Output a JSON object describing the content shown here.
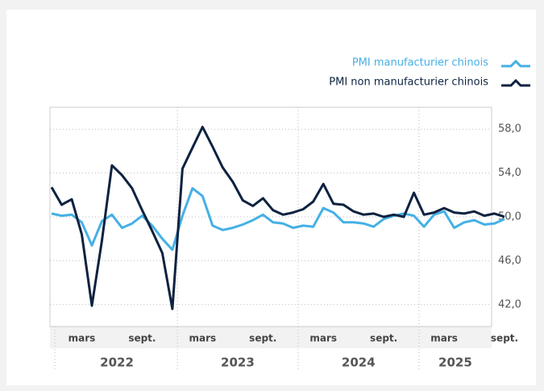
{
  "chart_data": {
    "type": "line",
    "categories": [
      null,
      null,
      null,
      "mars",
      null,
      null,
      null,
      null,
      null,
      "sept.",
      null,
      null,
      null,
      null,
      null,
      "mars",
      null,
      null,
      null,
      null,
      null,
      "sept.",
      null,
      null,
      null,
      null,
      null,
      "mars",
      null,
      null,
      null,
      null,
      null,
      "sept.",
      null,
      null,
      null,
      null,
      null,
      "mars",
      null,
      null,
      null,
      null,
      null,
      "sept."
    ],
    "year_labels": [
      "2022",
      "2023",
      "2024",
      "2025"
    ],
    "series": [
      {
        "name": "PMI manufacturier chinois",
        "color": "#45b0e5",
        "values": [
          50.3,
          50.1,
          50.2,
          49.5,
          47.4,
          49.6,
          50.2,
          49.0,
          49.4,
          50.1,
          49.2,
          48.0,
          47.0,
          50.1,
          52.6,
          51.9,
          49.2,
          48.8,
          49.0,
          49.3,
          49.7,
          50.2,
          49.5,
          49.4,
          49.0,
          49.2,
          49.1,
          50.8,
          50.4,
          49.5,
          49.5,
          49.4,
          49.1,
          49.8,
          50.1,
          50.3,
          50.1,
          49.1,
          50.2,
          50.5,
          49.0,
          49.5,
          49.7,
          49.3,
          49.4,
          49.8
        ]
      },
      {
        "name": "PMI non manufacturier chinois",
        "color": "#0d2240",
        "values": [
          52.7,
          51.1,
          51.6,
          48.4,
          41.9,
          47.8,
          54.7,
          53.8,
          52.6,
          50.6,
          48.7,
          46.7,
          41.6,
          54.4,
          56.3,
          58.2,
          56.4,
          54.5,
          53.2,
          51.5,
          51.0,
          51.7,
          50.6,
          50.2,
          50.4,
          50.7,
          51.4,
          53.0,
          51.2,
          51.1,
          50.5,
          50.2,
          50.3,
          50.0,
          50.2,
          50.0,
          52.2,
          50.2,
          50.4,
          50.8,
          50.4,
          50.3,
          50.5,
          50.1,
          50.3,
          50.0
        ]
      }
    ],
    "ylim": [
      40,
      60
    ],
    "yticks": [
      {
        "value": 42,
        "label": "42,0"
      },
      {
        "value": 46,
        "label": "46,0"
      },
      {
        "value": 50,
        "label": "50,0"
      },
      {
        "value": 54,
        "label": "54,0"
      },
      {
        "value": 58,
        "label": "58,0"
      }
    ],
    "grid": true,
    "legend": "top-right"
  }
}
